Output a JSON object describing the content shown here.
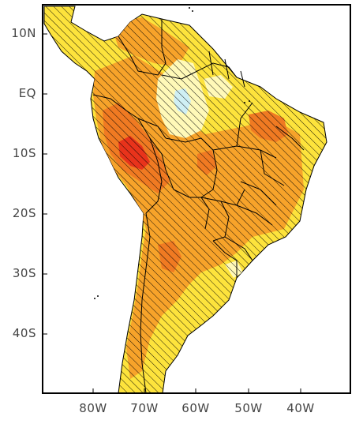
{
  "map": {
    "latitude_labels": [
      "10N",
      "EQ",
      "10S",
      "20S",
      "30S",
      "40S"
    ],
    "longitude_labels": [
      "80W",
      "70W",
      "60W",
      "50W",
      "40W"
    ],
    "colors": {
      "ocean": "#ffffff",
      "frame": "#000000",
      "base_land": "#fde33c",
      "orange": "#f7a32a",
      "deep_orange": "#f07a22",
      "red_core": "#e8331b",
      "pale_yellow": "#fff9b8",
      "pale_blue": "#cfeff4",
      "hatch": "#000000"
    }
  }
}
